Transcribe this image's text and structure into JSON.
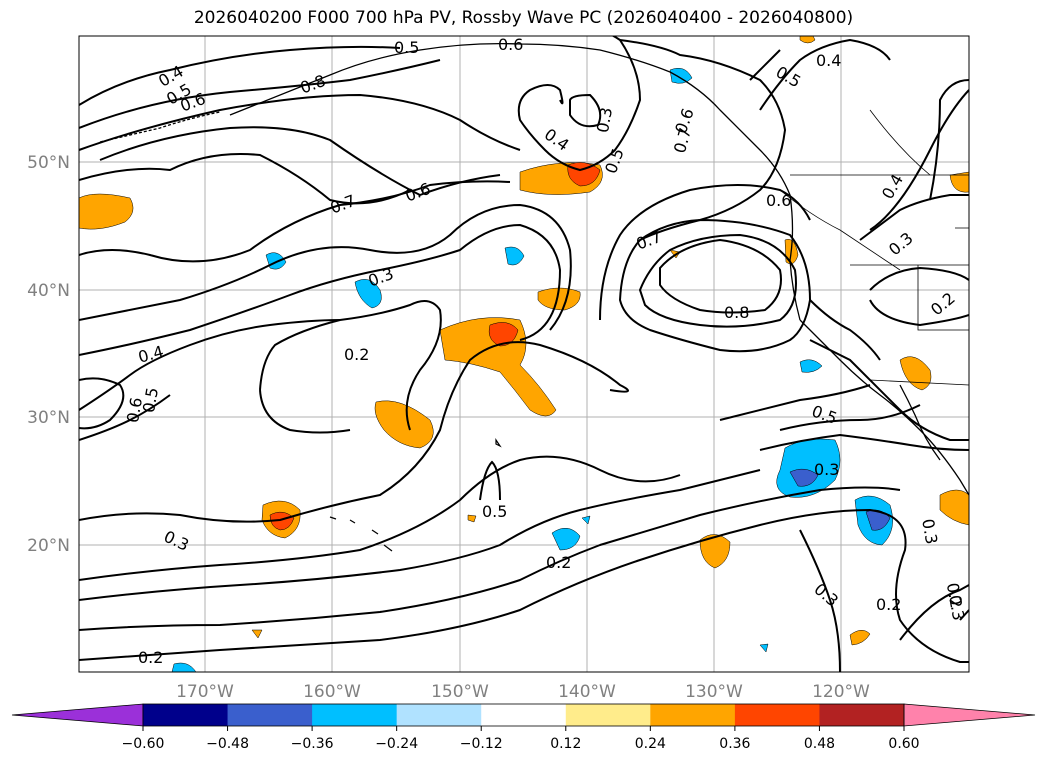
{
  "title": "2026040200 F000 700 hPa PV, Rossby Wave PC (2026040400 - 2026040800)",
  "map": {
    "lon_ticks": [
      "170°W",
      "160°W",
      "150°W",
      "140°W",
      "130°W",
      "120°W"
    ],
    "lat_ticks": [
      "50°N",
      "40°N",
      "30°N",
      "20°N"
    ],
    "contour_labels": [
      "0.4",
      "0.5",
      "0.6",
      "0.5",
      "0.6",
      "0.8",
      "0.3",
      "0.4",
      "0.7",
      "0.6",
      "0.7",
      "0.3",
      "0.2",
      "0.7",
      "0.8",
      "0.4",
      "0.5",
      "0.6",
      "0.5",
      "0.3",
      "0.5",
      "0.3",
      "0.2",
      "0.3",
      "0.2",
      "0.5",
      "0.6",
      "0.4",
      "0.3",
      "0.2",
      "0.4",
      "0.5",
      "0.6",
      "0.3",
      "0.2",
      "0.3",
      "0.2"
    ]
  },
  "colorbar": {
    "colors": [
      "#9b30d9",
      "#00008b",
      "#3a5fcd",
      "#00bfff",
      "#b0e2ff",
      "#ffffff",
      "#ffec8b",
      "#ffa500",
      "#ff4500",
      "#b22222",
      "#ff82ab"
    ],
    "ticks": [
      "−0.60",
      "−0.48",
      "−0.36",
      "−0.24",
      "−0.12",
      "0.12",
      "0.24",
      "0.36",
      "0.48",
      "0.60"
    ]
  }
}
